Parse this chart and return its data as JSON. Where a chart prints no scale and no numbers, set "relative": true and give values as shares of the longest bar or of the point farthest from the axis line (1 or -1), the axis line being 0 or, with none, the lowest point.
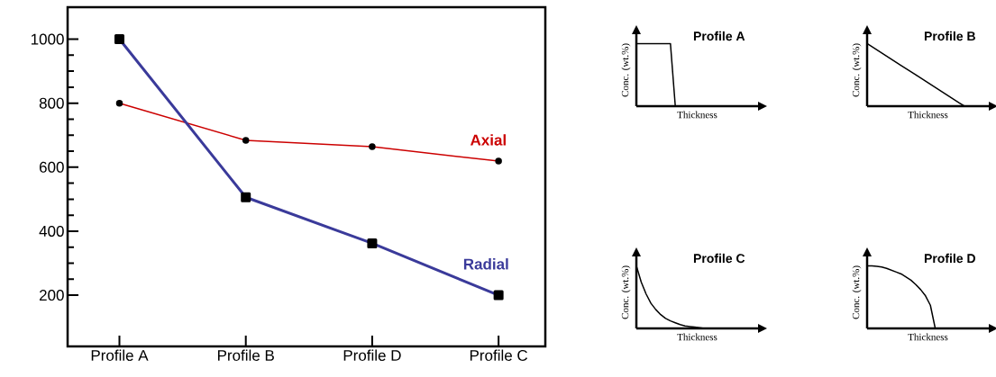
{
  "chart_data": [
    {
      "type": "line",
      "categories": [
        "Profile A",
        "Profile B",
        "Profile D",
        "Profile C"
      ],
      "ylim": [
        40,
        1100
      ],
      "yticks": [
        200,
        400,
        600,
        800,
        1000
      ],
      "grid": false,
      "series": [
        {
          "name": "Axial",
          "color": "#cc0000",
          "marker": "circle",
          "values": [
            800,
            684,
            664,
            619
          ]
        },
        {
          "name": "Radial",
          "color": "#3a3a9a",
          "marker": "square",
          "values": [
            1000,
            506,
            362,
            200
          ]
        }
      ]
    },
    {
      "type": "line",
      "title": "Profile A",
      "xlabel": "Thickness",
      "ylabel": "Conc. (wt.%)",
      "relative": true,
      "categories": [
        null,
        null,
        null,
        null,
        null,
        null,
        null,
        null,
        null,
        null,
        null,
        null,
        null,
        null,
        null,
        null,
        null,
        null,
        null,
        null,
        null
      ],
      "series": [
        {
          "color": "#000000",
          "values": [
            1,
            1,
            1,
            1,
            1,
            1,
            1,
            1,
            0,
            null,
            null,
            null,
            null,
            null,
            null,
            null,
            null,
            null,
            null,
            null,
            null
          ]
        }
      ]
    },
    {
      "type": "line",
      "title": "Profile B",
      "xlabel": "Thickness",
      "ylabel": "Conc. (wt.%)",
      "relative": true,
      "categories": [
        null,
        null,
        null,
        null,
        null,
        null,
        null,
        null,
        null,
        null,
        null,
        null,
        null,
        null,
        null,
        null,
        null,
        null,
        null,
        null,
        null
      ],
      "series": [
        {
          "color": "#000000",
          "values": [
            1,
            0.95,
            0.9,
            0.85,
            0.8,
            0.75,
            0.7,
            0.65,
            0.6,
            0.55,
            0.5,
            0.45,
            0.4,
            0.35,
            0.3,
            0.25,
            0.2,
            0.15,
            0.1,
            0.05,
            0
          ]
        }
      ]
    },
    {
      "type": "line",
      "title": "Profile C",
      "xlabel": "Thickness",
      "ylabel": "Conc. (wt.%)",
      "relative": true,
      "categories": [
        null,
        null,
        null,
        null,
        null,
        null,
        null,
        null,
        null,
        null,
        null,
        null,
        null,
        null,
        null,
        null,
        null,
        null,
        null,
        null,
        null
      ],
      "series": [
        {
          "color": "#000000",
          "values": [
            1,
            0.74,
            0.55,
            0.4,
            0.3,
            0.22,
            0.16,
            0.12,
            0.09,
            0.06,
            0.04,
            0.03,
            0.02,
            0.01,
            0,
            null,
            null,
            null,
            null,
            null,
            null
          ]
        }
      ]
    },
    {
      "type": "line",
      "title": "Profile D",
      "xlabel": "Thickness",
      "ylabel": "Conc. (wt.%)",
      "relative": true,
      "categories": [
        null,
        null,
        null,
        null,
        null,
        null,
        null,
        null,
        null,
        null,
        null,
        null,
        null,
        null,
        null,
        null,
        null,
        null,
        null,
        null,
        null
      ],
      "series": [
        {
          "color": "#000000",
          "values": [
            1,
            1,
            0.99,
            0.98,
            0.96,
            0.93,
            0.9,
            0.87,
            0.82,
            0.77,
            0.7,
            0.62,
            0.52,
            0.37,
            0,
            null,
            null,
            null,
            null,
            null,
            null
          ]
        }
      ]
    }
  ]
}
